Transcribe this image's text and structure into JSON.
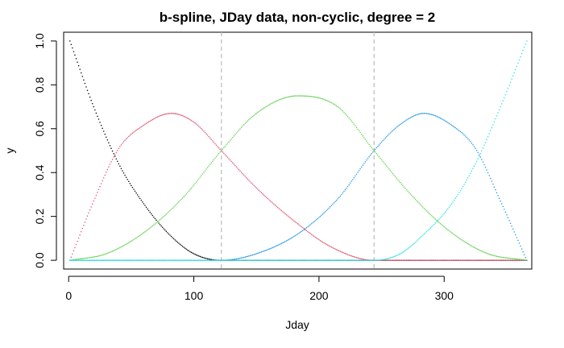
{
  "chart_data": {
    "type": "line",
    "title": "b-spline, JDay data, non-cyclic, degree = 2",
    "xlabel": "Jday",
    "ylabel": "y",
    "xlim": [
      -4,
      370
    ],
    "ylim": [
      -0.04,
      1.04
    ],
    "x_ticks": [
      0,
      100,
      200,
      300
    ],
    "y_ticks": [
      0.0,
      0.2,
      0.4,
      0.6,
      0.8,
      1.0
    ],
    "x_tick_labels": [
      "0",
      "100",
      "200",
      "300"
    ],
    "y_tick_labels": [
      "0.0",
      "0.2",
      "0.4",
      "0.6",
      "0.8",
      "1.0"
    ],
    "grid": false,
    "knots": [
      122,
      244
    ],
    "boundary": [
      1,
      366
    ],
    "series": [
      {
        "color": "#000000",
        "x": [
          1,
          20,
          40,
          61,
          80,
          100,
          122,
          140,
          200,
          250,
          300,
          366
        ],
        "values": [
          1.0,
          0.7,
          0.44,
          0.25,
          0.12,
          0.03,
          0.0,
          0.0,
          0.0,
          0.0,
          0.0,
          0.0
        ]
      },
      {
        "color": "#DF536B",
        "x": [
          1,
          20,
          40,
          61,
          82,
          100,
          122,
          150,
          180,
          210,
          244,
          280,
          320,
          366
        ],
        "values": [
          0.0,
          0.27,
          0.51,
          0.62,
          0.67,
          0.63,
          0.5,
          0.33,
          0.18,
          0.06,
          0.0,
          0.0,
          0.0,
          0.0
        ]
      },
      {
        "color": "#61D04F",
        "x": [
          1,
          30,
          61,
          92,
          122,
          150,
          183,
          215,
          244,
          275,
          305,
          335,
          366
        ],
        "values": [
          0.0,
          0.03,
          0.13,
          0.29,
          0.5,
          0.67,
          0.75,
          0.7,
          0.5,
          0.29,
          0.13,
          0.03,
          0.0
        ]
      },
      {
        "color": "#2297E6",
        "x": [
          1,
          60,
          122,
          150,
          183,
          215,
          244,
          265,
          284,
          305,
          325,
          345,
          366
        ],
        "values": [
          0.0,
          0.0,
          0.0,
          0.03,
          0.12,
          0.28,
          0.5,
          0.62,
          0.67,
          0.62,
          0.51,
          0.27,
          0.0
        ]
      },
      {
        "color": "#28E2E5",
        "x": [
          1,
          100,
          200,
          244,
          265,
          284,
          305,
          325,
          345,
          366
        ],
        "values": [
          0.0,
          0.0,
          0.0,
          0.0,
          0.03,
          0.12,
          0.25,
          0.44,
          0.7,
          1.0
        ]
      }
    ]
  }
}
